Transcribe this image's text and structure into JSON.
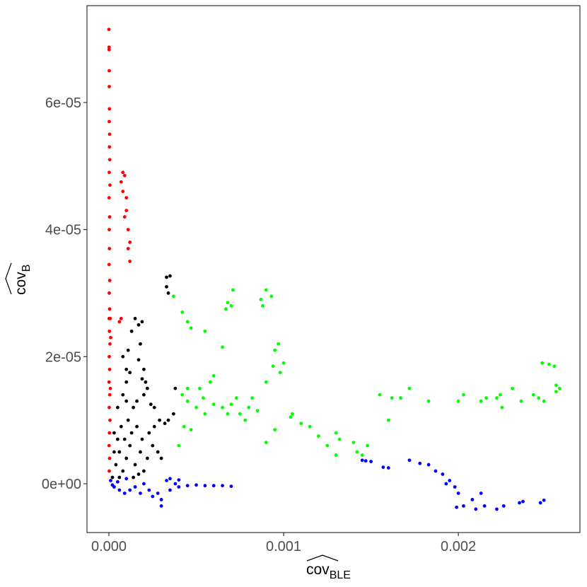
{
  "chart_data": {
    "type": "scatter",
    "xlabel": "cov",
    "xlabel_subscript": "BLE",
    "ylabel": "cov",
    "ylabel_subscript": "B",
    "xlim": [
      -0.0001255,
      0.002696
    ],
    "ylim": [
      -7.68e-06,
      7.524e-05
    ],
    "xticks": [
      {
        "value": 0,
        "label": "0.000"
      },
      {
        "value": 0.001,
        "label": "0.001"
      },
      {
        "value": 0.002,
        "label": "0.002"
      }
    ],
    "yticks": [
      {
        "value": 0,
        "label": "0e+00"
      },
      {
        "value": 2e-05,
        "label": "2e-05"
      },
      {
        "value": 4e-05,
        "label": "4e-05"
      },
      {
        "value": 6e-05,
        "label": "6e-05"
      }
    ],
    "series": [
      {
        "color": "#000000",
        "x": [
          2e-05,
          4e-05,
          6e-05,
          3e-05,
          5e-05,
          8e-05,
          0.0001,
          0.00012,
          0.00015,
          0.00018,
          0.0002,
          0.00022,
          0.00025,
          0.00028,
          0.0003,
          7e-05,
          9e-05,
          0.00011,
          0.00013,
          0.00016,
          0.00019,
          0.00023,
          0.00026,
          0.00029,
          0.00032,
          0.00034,
          0.00038,
          0.00037,
          8e-05,
          0.0001,
          0.0001,
          0.00012,
          8e-05,
          0.00011,
          0.00013,
          0.00015,
          0.00017,
          0.00019,
          0.00018,
          0.00017,
          0.0002,
          0.00019,
          0.00021,
          0.0002,
          0.00022,
          0.00014,
          0.00016,
          0.00024,
          0.00026,
          0.0001,
          0.00033,
          0.00035,
          0.00034,
          0.00033,
          3e-05,
          5e-05,
          6e-05,
          0.00014,
          0.00017
        ],
        "values": [
          1e-06,
          3e-06,
          5e-06,
          8e-06,
          1.2e-05,
          2e-06,
          4e-06,
          6e-06,
          3e-06,
          5e-06,
          2e-06,
          4e-06,
          6e-06,
          5e-06,
          4e-06,
          9e-06,
          7e-06,
          1e-05,
          8e-06,
          9e-06,
          7e-06,
          8e-06,
          9e-06,
          1e-05,
          9.5e-06,
          1e-05,
          1.5e-05,
          1.1e-05,
          1.4e-05,
          1.6e-05,
          1.8e-05,
          1.75e-05,
          2e-05,
          2.1e-05,
          2.4e-05,
          2.6e-05,
          2.5e-05,
          2.55e-05,
          2.2e-05,
          1.95e-05,
          1.8e-05,
          1.65e-05,
          1.6e-05,
          1.4e-05,
          1.5e-05,
          1.2e-05,
          1.3e-05,
          1.25e-05,
          1.2e-05,
          1.3e-05,
          3.25e-05,
          3.27e-05,
          3e-05,
          3.1e-05,
          5e-06,
          7e-06,
          1e-06,
          1e-06,
          1.5e-06
        ]
      },
      {
        "color": "#00ff00",
        "x": [
          0.00037,
          0.00042,
          0.00045,
          0.00047,
          0.00055,
          0.00067,
          0.0007,
          0.00071,
          0.00068,
          0.00087,
          0.0009,
          0.00093,
          0.00088,
          0.00095,
          0.00097,
          0.001,
          0.00098,
          0.00094,
          0.0009,
          0.00065,
          0.0006,
          0.00058,
          0.00042,
          0.00045,
          0.0005,
          0.00055,
          0.0006,
          0.00065,
          0.00068,
          0.0007,
          0.00075,
          0.00078,
          0.00082,
          0.00085,
          0.00043,
          0.00047,
          0.0004,
          0.00045,
          0.00052,
          0.00054,
          0.00073,
          0.0008,
          0.0009,
          0.00095,
          0.00105,
          0.00104,
          0.0011,
          0.00115,
          0.0012,
          0.00125,
          0.0013,
          0.00132,
          0.0013,
          0.0014,
          0.00142,
          0.00145,
          0.00148,
          0.0016,
          0.00155,
          0.00162,
          0.00167,
          0.00172,
          0.00183,
          0.002,
          0.00203,
          0.00213,
          0.00216,
          0.00222,
          0.00225,
          0.00236,
          0.00243,
          0.00246,
          0.00249,
          0.00248,
          0.00252,
          0.00255,
          0.00256,
          0.00258,
          0.00256,
          0.00231,
          0.00224
        ],
        "values": [
          2.95e-05,
          2.7e-05,
          2.55e-05,
          2.45e-05,
          2.4e-05,
          2.75e-05,
          2.8e-05,
          3.05e-05,
          2.85e-05,
          2.9e-05,
          3.05e-05,
          2.95e-05,
          2.8e-05,
          2.1e-05,
          2.2e-05,
          1.9e-05,
          1.75e-05,
          1.85e-05,
          1.6e-05,
          2.15e-05,
          1.7e-05,
          1.6e-05,
          1.4e-05,
          1.3e-05,
          1.2e-05,
          1.1e-05,
          1.25e-05,
          1.2e-05,
          1.1e-05,
          1.25e-05,
          1.1e-05,
          1e-05,
          1.35e-05,
          1.15e-05,
          9e-06,
          8.5e-06,
          6e-06,
          1.5e-05,
          1.5e-05,
          1.35e-05,
          1.35e-05,
          1.2e-05,
          6.5e-06,
          8.5e-06,
          1.1e-05,
          1.05e-05,
          9.5e-06,
          9e-06,
          7.5e-06,
          6e-06,
          8e-06,
          7e-06,
          4.5e-06,
          6.5e-06,
          5e-06,
          4.5e-06,
          6e-06,
          1e-05,
          1.4e-05,
          1.35e-05,
          1.35e-05,
          1.5e-05,
          1.3e-05,
          1.3e-05,
          1.4e-05,
          1.3e-05,
          1.35e-05,
          1.35e-05,
          1.2e-05,
          1.3e-05,
          1.4e-05,
          1.35e-05,
          1.3e-05,
          1.9e-05,
          1.88e-05,
          1.85e-05,
          1.55e-05,
          1.5e-05,
          1.45e-05,
          1.5e-05,
          1.4e-05
        ]
      },
      {
        "color": "#0000ff",
        "x": [
          1e-05,
          3e-05,
          6e-05,
          9e-05,
          0.00012,
          0.00015,
          0.00018,
          0.0002,
          0.00023,
          0.00025,
          0.00028,
          0.0003,
          0.0003,
          0.00033,
          0.00035,
          0.00038,
          0.0004,
          0.00045,
          0.0005,
          0.00055,
          0.0006,
          0.00065,
          0.0007,
          0.00035,
          0.0004,
          0.0001,
          2e-05,
          5e-05,
          0.00145,
          0.00147,
          0.0015,
          0.00157,
          0.0016,
          0.00172,
          0.00178,
          0.00183,
          0.00187,
          0.00191,
          0.00195,
          0.00193,
          0.00198,
          0.002,
          0.00203,
          0.00208,
          0.00213,
          0.00215,
          0.00222,
          0.00226,
          0.00235,
          0.00237,
          0.00247,
          0.00249,
          0.00199,
          0.0021
        ],
        "values": [
          5e-07,
          -5e-07,
          -1e-06,
          -1.5e-06,
          -1e-06,
          -5e-07,
          -1.5e-06,
          0,
          -1e-06,
          -2e-06,
          -1.5e-06,
          -2.5e-06,
          -3.5e-06,
          5e-07,
          -1e-06,
          0,
          -5e-07,
          -3e-07,
          -2e-07,
          -3e-07,
          -3e-07,
          -3e-07,
          -4e-07,
          8e-07,
          6e-07,
          8e-07,
          -2e-07,
          3e-07,
          3.7e-06,
          3.6e-06,
          3.5e-06,
          2.6e-06,
          2.5e-06,
          3.7e-06,
          3.2e-06,
          3e-06,
          2e-06,
          1.5e-06,
          5e-07,
          0,
          -5e-07,
          -1.5e-06,
          -3.5e-06,
          -2.5e-06,
          -1.5e-06,
          -3.5e-06,
          -4e-06,
          -3.5e-06,
          -3e-06,
          -2.8e-06,
          -3e-06,
          -2.6e-06,
          -3.7e-06,
          -4e-06
        ]
      },
      {
        "color": "#ff0000",
        "x": [
          0,
          1e-06,
          1e-06,
          2e-06,
          2e-06,
          3e-06,
          2e-06,
          4e-06,
          3e-06,
          5e-06,
          2e-06,
          6e-06,
          1e-06,
          4e-06,
          2e-06,
          3e-06,
          1e-06,
          5e-06,
          2e-06,
          4e-06,
          1e-06,
          3e-06,
          6e-06,
          2e-06,
          4e-06,
          1e-06,
          5e-06,
          2e-06,
          6e-06,
          3e-06,
          1e-06,
          4e-06,
          2e-06,
          8e-06,
          1e-05,
          8e-06,
          7e-05,
          8e-05,
          9e-05,
          8e-05,
          0.0001,
          0.0001,
          0.00011,
          0.00012,
          0.00011,
          0.00012,
          9e-05,
          6e-05,
          7e-05
        ],
        "values": [
          7.15e-05,
          6.87e-05,
          6.83e-05,
          6.5e-05,
          6.25e-05,
          5.9e-05,
          5.7e-05,
          5.5e-05,
          5.3e-05,
          5.1e-05,
          4.9e-05,
          4.7e-05,
          4.5e-05,
          4.2e-05,
          4e-05,
          3.7e-05,
          3.45e-05,
          3.2e-05,
          3e-05,
          2.75e-05,
          2.6e-05,
          2.4e-05,
          2.2e-05,
          2e-05,
          1.8e-05,
          1.6e-05,
          1.4e-05,
          1.2e-05,
          1e-05,
          8e-06,
          6e-06,
          4e-06,
          2e-06,
          1.5e-05,
          2.3e-05,
          2.6e-05,
          4.75e-05,
          4.9e-05,
          4.85e-05,
          4.6e-05,
          4.5e-05,
          4.3e-05,
          4e-05,
          3.8e-05,
          3.7e-05,
          3.5e-05,
          4.2e-05,
          2.55e-05,
          2.6e-05
        ]
      }
    ]
  }
}
